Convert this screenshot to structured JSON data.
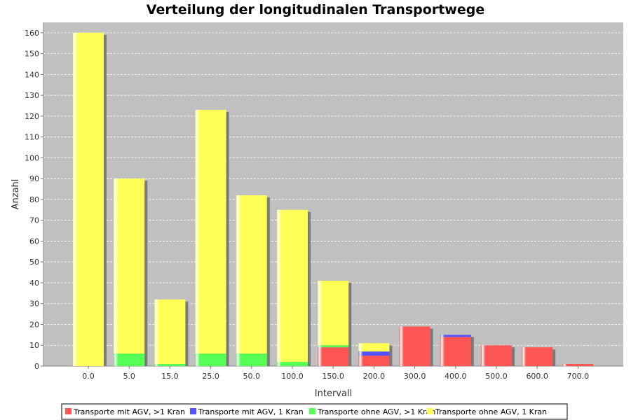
{
  "chart_data": {
    "type": "bar",
    "stacked": true,
    "title": "Verteilung der longitudinalen Transportwege",
    "xlabel": "Intervall",
    "ylabel": "Anzahl",
    "ylim": [
      0,
      165
    ],
    "yticks": [
      0,
      10,
      20,
      30,
      40,
      50,
      60,
      70,
      80,
      90,
      100,
      110,
      120,
      130,
      140,
      150,
      160
    ],
    "grid": true,
    "legend_position": "bottom",
    "background": "#c0c0c0",
    "categories": [
      "0.0",
      "5.0",
      "15.0",
      "25.0",
      "50.0",
      "100.0",
      "150.0",
      "200.0",
      "300.0",
      "400.0",
      "500.0",
      "600.0",
      "700.0"
    ],
    "series": [
      {
        "name": "Transporte mit AGV, >1 Kran",
        "color": "#ff5555",
        "values": [
          0,
          0,
          0,
          0,
          0,
          0,
          9,
          5,
          19,
          14,
          10,
          9,
          1
        ]
      },
      {
        "name": "Transporte mit AGV, 1 Kran",
        "color": "#5555ff",
        "values": [
          0,
          0,
          0,
          0,
          0,
          0,
          0,
          2,
          0,
          1,
          0,
          0,
          0
        ]
      },
      {
        "name": "Transporte ohne AGV, >1 Kran",
        "color": "#55ff55",
        "values": [
          0,
          6,
          1,
          6,
          6,
          2,
          1,
          0,
          0,
          0,
          0,
          0,
          0
        ]
      },
      {
        "name": "Transporte ohne AGV, 1 Kran",
        "color": "#ffff55",
        "values": [
          160,
          84,
          31,
          117,
          76,
          73,
          31,
          4,
          0,
          0,
          0,
          0,
          0
        ]
      }
    ]
  }
}
